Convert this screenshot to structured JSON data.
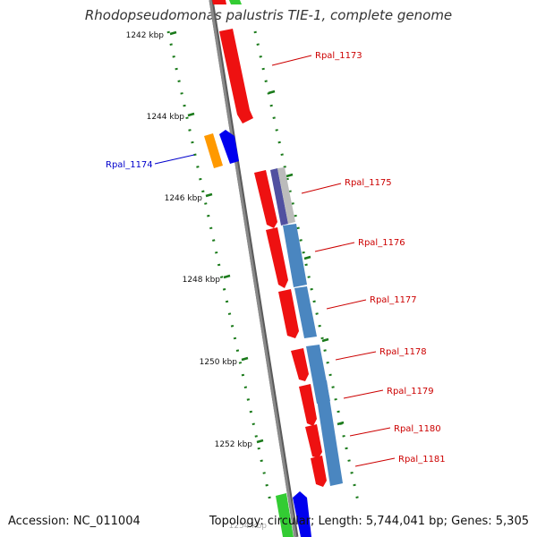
{
  "title": "Rhodopseudomonas palustris TIE-1, complete genome",
  "footer": {
    "accession": "Accession: NC_011004",
    "topology": "Topology: circular; Length: 5,744,041 bp; Genes: 5,305"
  },
  "colors": {
    "backbone": "#8a8a8a",
    "tick": "#1a7a1a",
    "gene_red": "#ee1111",
    "gene_blue": "#0000ee",
    "gene_orange": "#ff9900",
    "gene_green": "#33cc33",
    "gene_steelblue": "#4a86c0",
    "label_red": "#cc0000",
    "label_blue": "#0000cc"
  },
  "scale_labels": [
    "1242 kbp",
    "1244 kbp",
    "1246 kbp",
    "1248 kbp",
    "1250 kbp",
    "1252 kbp",
    "1254 kbp"
  ],
  "gene_labels": [
    {
      "text": "Rpal_1173",
      "color": "red"
    },
    {
      "text": "Rpal_1174",
      "color": "blue"
    },
    {
      "text": "Rpal_1175",
      "color": "red"
    },
    {
      "text": "Rpal_1176",
      "color": "red"
    },
    {
      "text": "Rpal_1177",
      "color": "red"
    },
    {
      "text": "Rpal_1178",
      "color": "red"
    },
    {
      "text": "Rpal_1179",
      "color": "red"
    },
    {
      "text": "Rpal_1180",
      "color": "red"
    },
    {
      "text": "Rpal_1181",
      "color": "red"
    }
  ]
}
